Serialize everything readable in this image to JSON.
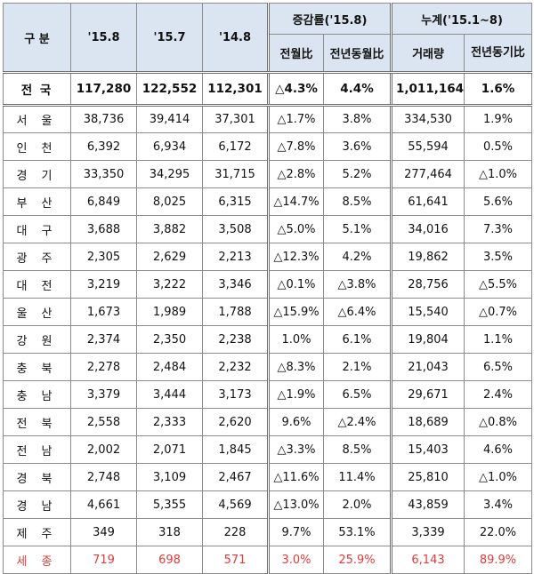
{
  "header": {
    "region": "구 분",
    "col_158": "'15.8",
    "col_157": "'15.7",
    "col_148": "'14.8",
    "change_group": "증감률('15.8)",
    "mom": "전월比",
    "yoy": "전년동월比",
    "cumulative_group": "누계('15.1~8)",
    "volume": "거래량",
    "yoy_cum": "전년동기比"
  },
  "rows": [
    {
      "region": "전 국",
      "v158": "117,280",
      "v157": "122,552",
      "v148": "112,301",
      "mom": "△4.3%",
      "yoy": "4.4%",
      "volume": "1,011,164",
      "yoy_cum": "1.6%"
    },
    {
      "region": "서 울",
      "v158": "38,736",
      "v157": "39,414",
      "v148": "37,301",
      "mom": "△1.7%",
      "yoy": "3.8%",
      "volume": "334,530",
      "yoy_cum": "1.9%"
    },
    {
      "region": "인 천",
      "v158": "6,392",
      "v157": "6,934",
      "v148": "6,172",
      "mom": "△7.8%",
      "yoy": "3.6%",
      "volume": "55,594",
      "yoy_cum": "0.5%"
    },
    {
      "region": "경 기",
      "v158": "33,350",
      "v157": "34,295",
      "v148": "31,715",
      "mom": "△2.8%",
      "yoy": "5.2%",
      "volume": "277,464",
      "yoy_cum": "△1.0%"
    },
    {
      "region": "부 산",
      "v158": "6,849",
      "v157": "8,025",
      "v148": "6,315",
      "mom": "△14.7%",
      "yoy": "8.5%",
      "volume": "61,641",
      "yoy_cum": "5.6%"
    },
    {
      "region": "대 구",
      "v158": "3,688",
      "v157": "3,882",
      "v148": "3,508",
      "mom": "△5.0%",
      "yoy": "5.1%",
      "volume": "34,016",
      "yoy_cum": "7.3%"
    },
    {
      "region": "광 주",
      "v158": "2,305",
      "v157": "2,629",
      "v148": "2,213",
      "mom": "△12.3%",
      "yoy": "4.2%",
      "volume": "19,862",
      "yoy_cum": "3.5%"
    },
    {
      "region": "대 전",
      "v158": "3,219",
      "v157": "3,222",
      "v148": "3,346",
      "mom": "△0.1%",
      "yoy": "△3.8%",
      "volume": "28,756",
      "yoy_cum": "△5.5%"
    },
    {
      "region": "울 산",
      "v158": "1,673",
      "v157": "1,989",
      "v148": "1,788",
      "mom": "△15.9%",
      "yoy": "△6.4%",
      "volume": "15,540",
      "yoy_cum": "△0.7%"
    },
    {
      "region": "강 원",
      "v158": "2,374",
      "v157": "2,350",
      "v148": "2,238",
      "mom": "1.0%",
      "yoy": "6.1%",
      "volume": "19,804",
      "yoy_cum": "1.1%"
    },
    {
      "region": "충 북",
      "v158": "2,278",
      "v157": "2,484",
      "v148": "2,232",
      "mom": "△8.3%",
      "yoy": "2.1%",
      "volume": "21,043",
      "yoy_cum": "6.5%"
    },
    {
      "region": "충 남",
      "v158": "3,379",
      "v157": "3,444",
      "v148": "3,173",
      "mom": "△1.9%",
      "yoy": "6.5%",
      "volume": "29,671",
      "yoy_cum": "2.4%"
    },
    {
      "region": "전 북",
      "v158": "2,558",
      "v157": "2,333",
      "v148": "2,620",
      "mom": "9.6%",
      "yoy": "△2.4%",
      "volume": "18,689",
      "yoy_cum": "△0.8%"
    },
    {
      "region": "전 남",
      "v158": "2,002",
      "v157": "2,071",
      "v148": "1,845",
      "mom": "△3.3%",
      "yoy": "8.5%",
      "volume": "15,403",
      "yoy_cum": "4.6%"
    },
    {
      "region": "경 북",
      "v158": "2,748",
      "v157": "3,109",
      "v148": "2,467",
      "mom": "△11.6%",
      "yoy": "11.4%",
      "volume": "25,810",
      "yoy_cum": "△1.0%"
    },
    {
      "region": "경 남",
      "v158": "4,661",
      "v157": "5,355",
      "v148": "4,569",
      "mom": "△13.0%",
      "yoy": "2.0%",
      "volume": "43,859",
      "yoy_cum": "3.4%"
    },
    {
      "region": "제 주",
      "v158": "349",
      "v157": "318",
      "v148": "228",
      "mom": "9.7%",
      "yoy": "53.1%",
      "volume": "3,339",
      "yoy_cum": "22.0%"
    },
    {
      "region": "세 종",
      "v158": "719",
      "v157": "698",
      "v148": "571",
      "mom": "3.0%",
      "yoy": "25.9%",
      "volume": "6,143",
      "yoy_cum": "89.9%"
    }
  ],
  "colors": {
    "header_bg": "#dbe5f1",
    "border": "#8c8c8c",
    "sejong_text": "#e23b3b"
  }
}
